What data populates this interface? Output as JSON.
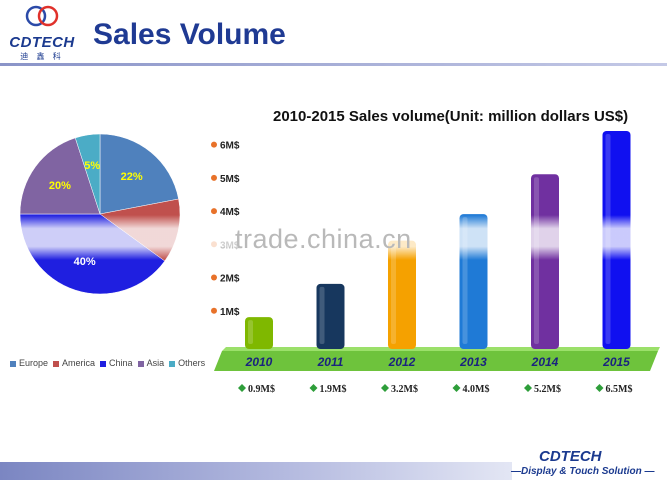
{
  "header": {
    "logo_text": "CDTECH",
    "logo_sub": "迪 鑫 科",
    "title": "Sales Volume"
  },
  "watermark": "trade.china.cn",
  "footer": {
    "brand": "CDTECH",
    "tagline": "—Display & Touch Solution —"
  },
  "chart_data": [
    {
      "type": "pie",
      "labels": [
        "Europe",
        "America",
        "China",
        "Asia",
        "Others"
      ],
      "values": [
        22,
        13,
        40,
        20,
        5
      ],
      "value_labels": [
        "22%",
        "",
        "40%",
        "20%",
        "5%"
      ],
      "colors": [
        "#4f81bd",
        "#c0504d",
        "#1f1fe0",
        "#8064a2",
        "#4bacc6"
      ]
    },
    {
      "type": "bar",
      "title": "2010-2015 Sales volume(Unit: million dollars US$)",
      "categories": [
        "2010",
        "2011",
        "2012",
        "2013",
        "2014",
        "2015"
      ],
      "values": [
        0.9,
        1.9,
        3.2,
        4.0,
        5.2,
        6.5
      ],
      "value_labels": [
        "0.9M$",
        "1.9M$",
        "3.2M$",
        "4.0M$",
        "5.2M$",
        "6.5M$"
      ],
      "y_ticks": [
        "1M$",
        "2M$",
        "3M$",
        "4M$",
        "5M$",
        "6M$"
      ],
      "ylim": [
        0,
        6.5
      ],
      "colors": [
        "#7fb800",
        "#17375e",
        "#f5a100",
        "#1f7ad6",
        "#7030a0",
        "#1010f0"
      ]
    }
  ]
}
